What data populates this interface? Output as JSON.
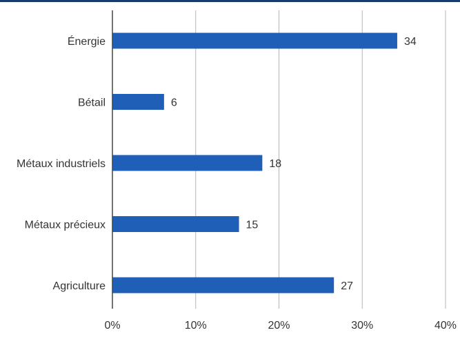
{
  "colors": {
    "bar": "#1f5fb8",
    "grid": "#b5b5b5",
    "axis": "#444444",
    "top_rule": "#1a3a6b",
    "text": "#333333"
  },
  "chart_data": {
    "type": "bar",
    "orientation": "horizontal",
    "categories": [
      "Énergie",
      "Bétail",
      "Métaux industriels",
      "Métaux précieux",
      "Agriculture"
    ],
    "values": [
      34.2,
      6.2,
      18,
      15.2,
      26.6
    ],
    "value_labels": [
      "34",
      "6",
      "18",
      "15",
      "27"
    ],
    "xlim": [
      0,
      40
    ],
    "xticks": [
      0,
      10,
      20,
      30,
      40
    ],
    "xtick_labels": [
      "0%",
      "10%",
      "20%",
      "30%",
      "40%"
    ],
    "grid": true,
    "legend": "none",
    "title": "",
    "xlabel": "",
    "ylabel": ""
  }
}
